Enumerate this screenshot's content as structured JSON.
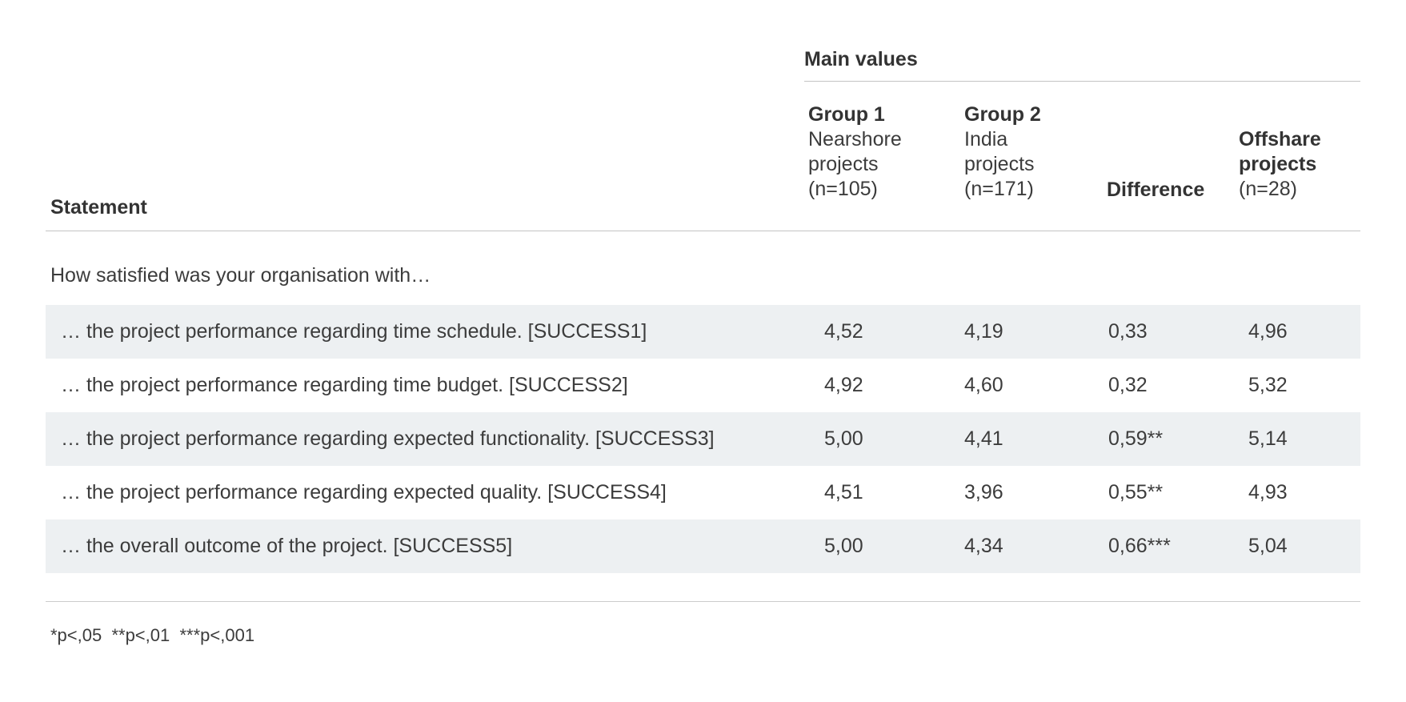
{
  "colors": {
    "row_shade": "#edf0f2",
    "text": "#3c3c3c",
    "heading_text": "#333333",
    "rule": "#c4c4c4"
  },
  "page": {
    "group_header": "Main values",
    "columns": {
      "statement_label": "Statement",
      "group1_title": "Group 1",
      "group1_line1": "Nearshore",
      "group1_line2": "projects",
      "group1_n": "(n=105)",
      "group2_title": "Group 2",
      "group2_line1": "India",
      "group2_line2": "projects",
      "group2_n": "(n=171)",
      "difference_label": "Difference",
      "offshare_line1": "Offshare",
      "offshare_line2": "projects",
      "offshare_n": "(n=28)"
    },
    "section_header": "How satisfied was your organisation with…",
    "rows": [
      {
        "statement": "… the project performance regarding time schedule. [SUCCESS1]",
        "values": [
          "4,52",
          "4,19",
          "0,33",
          "4,96"
        ]
      },
      {
        "statement": "… the project performance regarding time budget. [SUCCESS2]",
        "values": [
          "4,92",
          "4,60",
          "0,32",
          "5,32"
        ]
      },
      {
        "statement": "… the project performance regarding expected functionality. [SUCCESS3]",
        "values": [
          "5,00",
          "4,41",
          "0,59**",
          "5,14"
        ]
      },
      {
        "statement": "… the project performance regarding expected quality. [SUCCESS4]",
        "values": [
          "4,51",
          "3,96",
          "0,55**",
          "4,93"
        ]
      },
      {
        "statement": "… the overall outcome of the project. [SUCCESS5]",
        "values": [
          "5,00",
          "4,34",
          "0,66***",
          "5,04"
        ]
      }
    ],
    "footnote": "*p<,05  **p<,01  ***p<,001"
  }
}
